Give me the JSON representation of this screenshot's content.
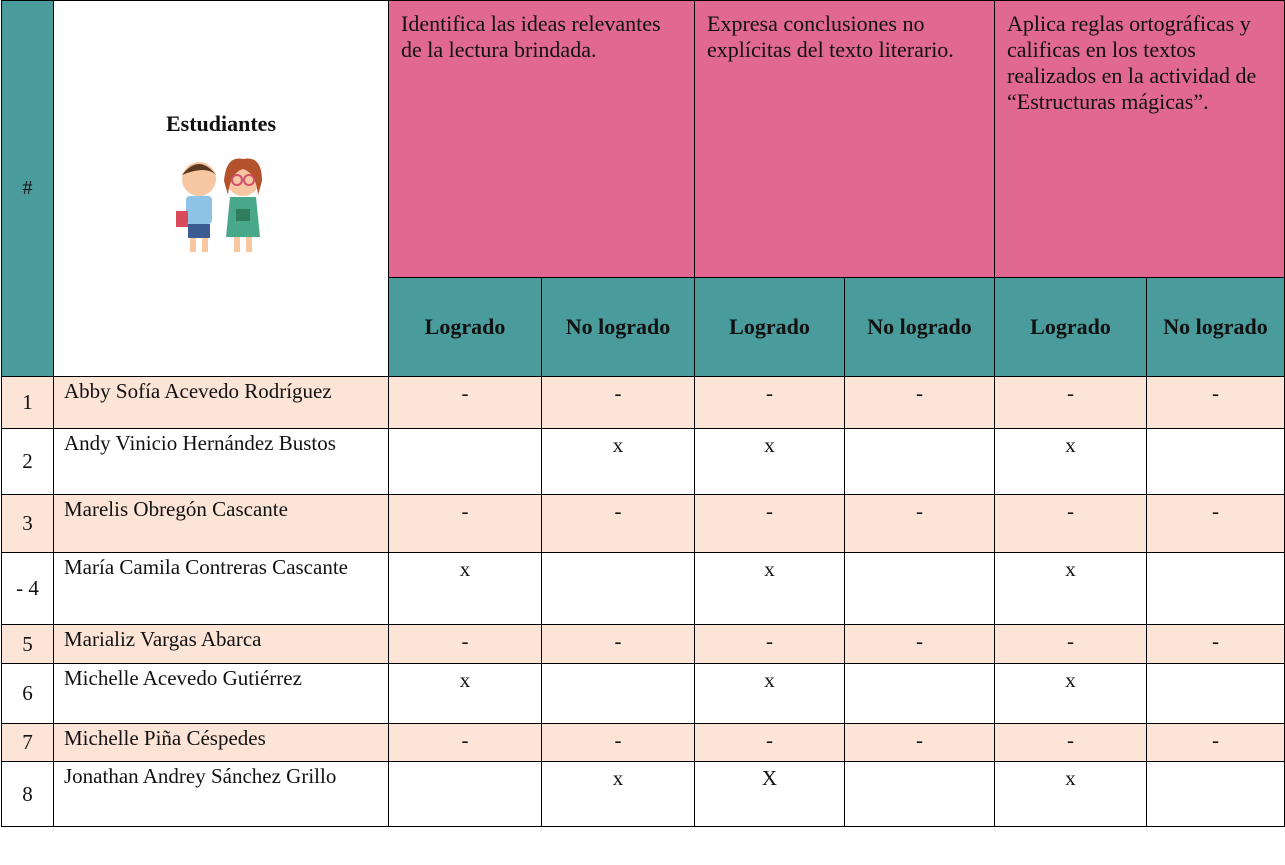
{
  "header": {
    "number": "#",
    "students": "Estudiantes",
    "criteria": [
      {
        "text": "Identifica las ideas relevantes de la lectura brindada.",
        "achieved": "Logrado",
        "not_achieved": "No logrado"
      },
      {
        "text": "Expresa  conclusiones no explícitas del texto literario.",
        "achieved": "Logrado",
        "not_achieved": "No logrado"
      },
      {
        "text": "Aplica reglas ortográficas y calificas en los textos realizados en la actividad de “Estructuras mágicas”.",
        "achieved": "Logrado",
        "not_achieved": "No logrado"
      }
    ]
  },
  "rows": [
    {
      "number": "1",
      "name": "Abby Sofía Acevedo Rodríguez",
      "marks": [
        "-",
        "-",
        "-",
        "-",
        "-",
        "-"
      ]
    },
    {
      "number": "2",
      "name": "Andy Vinicio Hernández Bustos",
      "marks": [
        null,
        "x",
        "x",
        null,
        "x",
        null
      ]
    },
    {
      "number": "3",
      "name": "Marelis Obregón Cascante",
      "marks": [
        "-",
        "-",
        "-",
        "-",
        "-",
        "-"
      ]
    },
    {
      "number": "- 4",
      "name": "María Camila Contreras Cascante",
      "marks": [
        "x",
        null,
        "x",
        null,
        "x",
        null
      ]
    },
    {
      "number": "5",
      "name": "Marializ Vargas Abarca",
      "marks": [
        "-",
        "-",
        "-",
        "-",
        "-",
        "-"
      ]
    },
    {
      "number": "6",
      "name": "Michelle Acevedo Gutiérrez",
      "marks": [
        "x",
        null,
        "x",
        null,
        "x",
        null
      ]
    },
    {
      "number": "7",
      "name": "Michelle Piña Céspedes",
      "marks": [
        "-",
        "-",
        "-",
        "-",
        "-",
        "-"
      ]
    },
    {
      "number": "8",
      "name": "Jonathan Andrey Sánchez Grillo",
      "marks": [
        null,
        "x",
        "X",
        null,
        "x",
        null
      ]
    }
  ]
}
